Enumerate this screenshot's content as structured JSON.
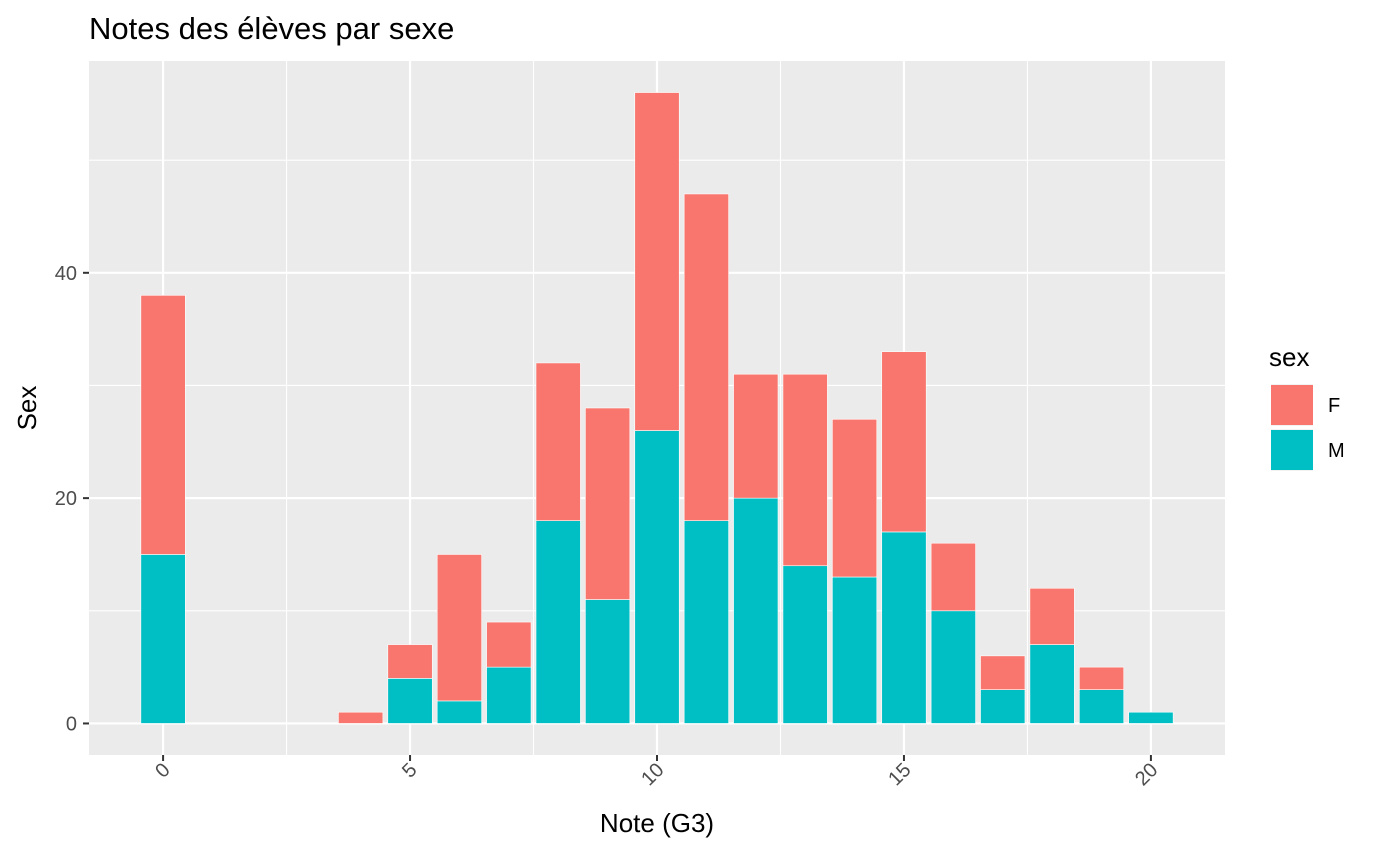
{
  "chart_data": {
    "type": "bar",
    "stacked": true,
    "title": "Notes des élèves par sexe",
    "xlabel": "Note (G3)",
    "ylabel": "Sex",
    "xlim": [
      -1.5,
      21.5
    ],
    "ylim": [
      -2.8,
      58.8
    ],
    "x_ticks": [
      0,
      5,
      10,
      15,
      20
    ],
    "x_tick_labels": [
      "0",
      "5",
      "10",
      "15",
      "20"
    ],
    "x_tick_label_rotation": 45,
    "y_ticks": [
      0,
      20,
      40
    ],
    "y_tick_labels": [
      "0",
      "20",
      "40"
    ],
    "grid": true,
    "legend": {
      "title": "sex",
      "position": "right"
    },
    "x": [
      0,
      4,
      5,
      6,
      7,
      8,
      9,
      10,
      11,
      12,
      13,
      14,
      15,
      16,
      17,
      18,
      19,
      20
    ],
    "series": [
      {
        "name": "F",
        "color": "#F8766D",
        "values": [
          23,
          1,
          3,
          13,
          4,
          14,
          17,
          30,
          29,
          11,
          17,
          14,
          16,
          6,
          3,
          5,
          2,
          0
        ]
      },
      {
        "name": "M",
        "color": "#00BFC4",
        "values": [
          15,
          0,
          4,
          2,
          5,
          18,
          11,
          26,
          18,
          20,
          14,
          13,
          17,
          10,
          3,
          7,
          3,
          1
        ]
      }
    ]
  }
}
